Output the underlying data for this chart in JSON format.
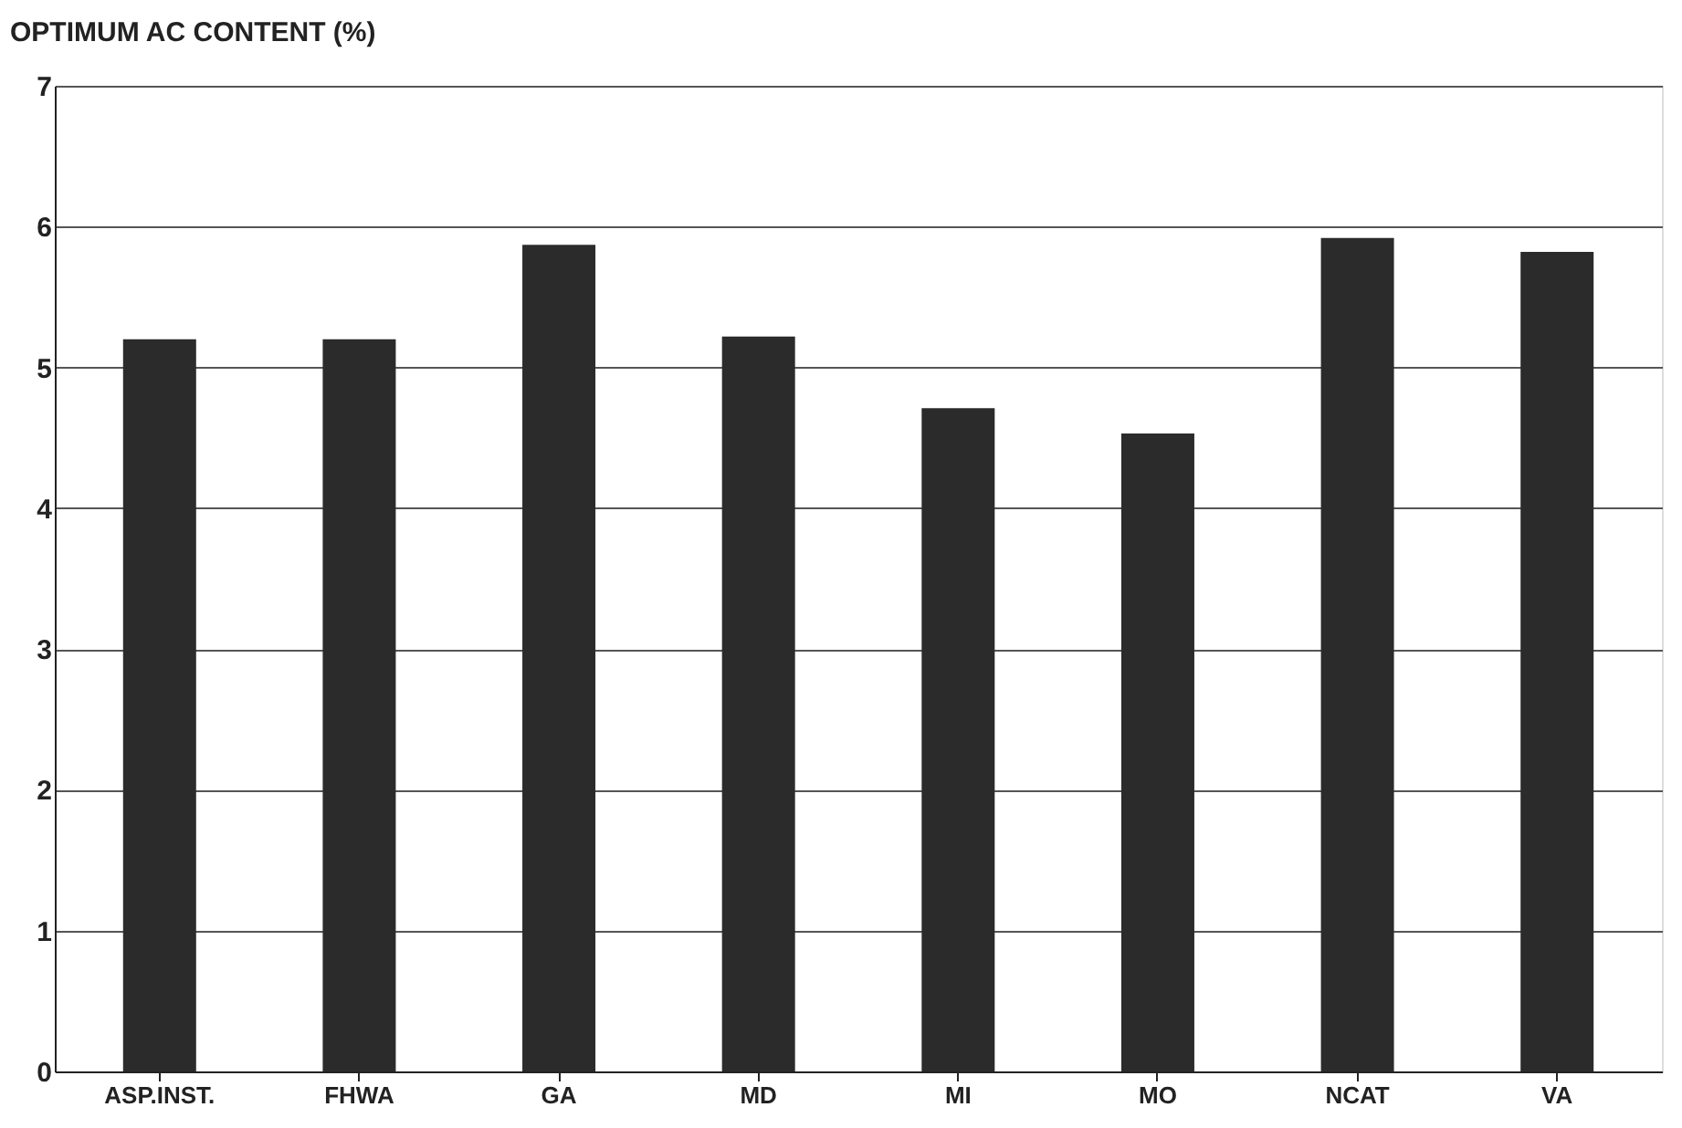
{
  "chart_data": {
    "type": "bar",
    "ylabel": "OPTIMUM AC CONTENT (%)",
    "categories": [
      "ASP.INST.",
      "FHWA",
      "GA",
      "MD",
      "MI",
      "MO",
      "NCAT",
      "VA"
    ],
    "values": [
      5.2,
      5.2,
      5.87,
      5.22,
      4.71,
      4.53,
      5.92,
      5.82
    ],
    "color": "#2b2b2b",
    "ylim": [
      0,
      7
    ],
    "yticks": [
      0,
      1,
      2,
      3,
      4,
      5,
      6,
      7
    ],
    "grid": "y"
  }
}
